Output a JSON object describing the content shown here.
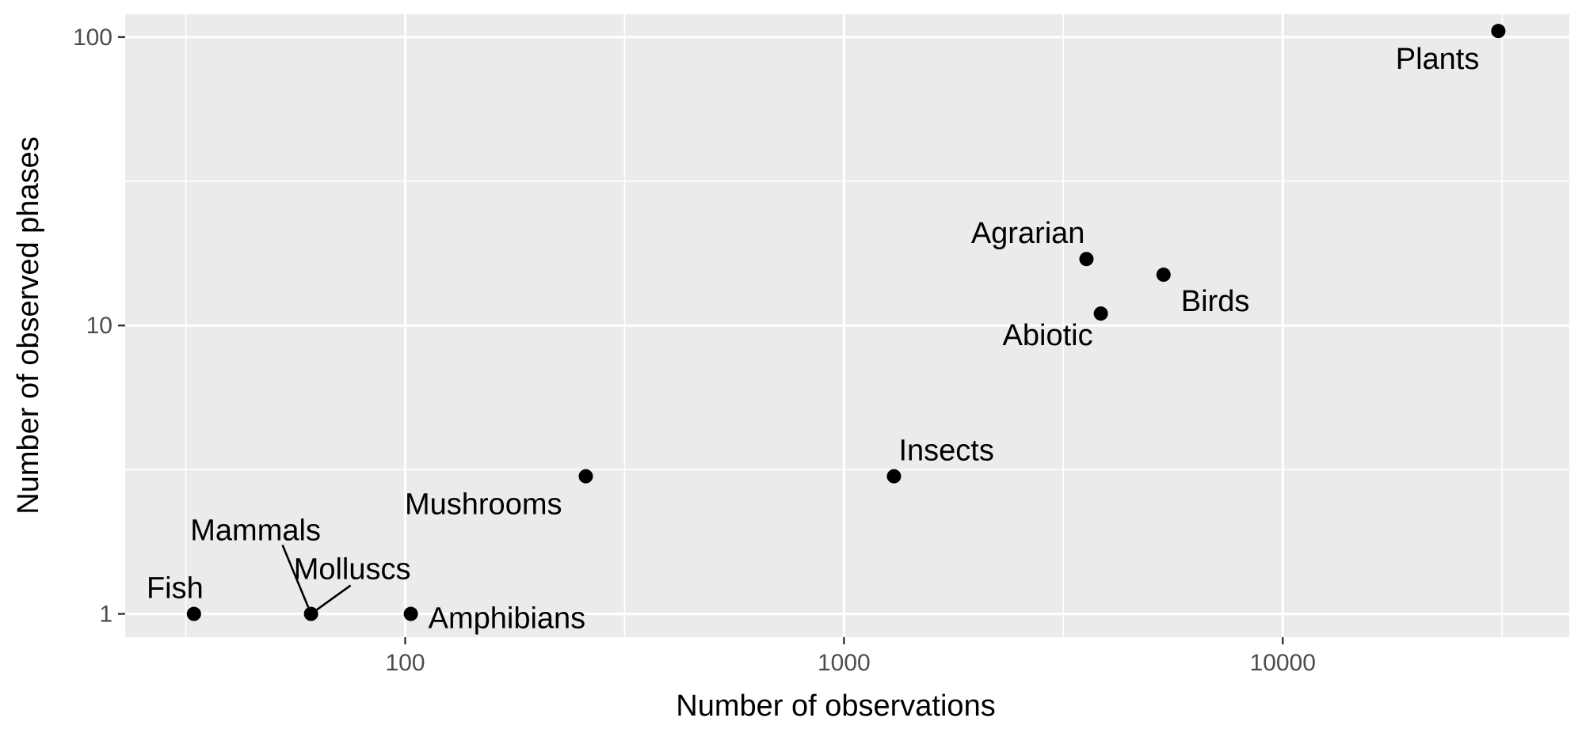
{
  "chart_data": {
    "type": "scatter",
    "title": "",
    "xlabel": "Number of observations",
    "ylabel": "Number of observed phases",
    "x_scale": "log10",
    "y_scale": "log10",
    "xlim": [
      23,
      45000
    ],
    "ylim": [
      0.83,
      120
    ],
    "x_ticks": [
      {
        "value": 100,
        "label": "100"
      },
      {
        "value": 1000,
        "label": "1000"
      },
      {
        "value": 10000,
        "label": "10000"
      }
    ],
    "y_ticks": [
      {
        "value": 1,
        "label": "1"
      },
      {
        "value": 10,
        "label": "10"
      },
      {
        "value": 100,
        "label": "100"
      }
    ],
    "grid": true,
    "legend": "none",
    "colors": {
      "panel": "#ebebeb",
      "grid": "#ffffff",
      "point": "#000000",
      "tick_text": "#4d4d4d"
    },
    "points": [
      {
        "label": "Fish",
        "x": 33,
        "y": 1
      },
      {
        "label": "Mammals",
        "x": 61,
        "y": 1
      },
      {
        "label": "Molluscs",
        "x": 61,
        "y": 1
      },
      {
        "label": "Amphibians",
        "x": 103,
        "y": 1
      },
      {
        "label": "Mushrooms",
        "x": 258,
        "y": 3
      },
      {
        "label": "Insects",
        "x": 1300,
        "y": 3
      },
      {
        "label": "Agrarian",
        "x": 3570,
        "y": 17
      },
      {
        "label": "Abiotic",
        "x": 3850,
        "y": 11
      },
      {
        "label": "Birds",
        "x": 5350,
        "y": 15
      },
      {
        "label": "Plants",
        "x": 31000,
        "y": 105
      }
    ]
  }
}
